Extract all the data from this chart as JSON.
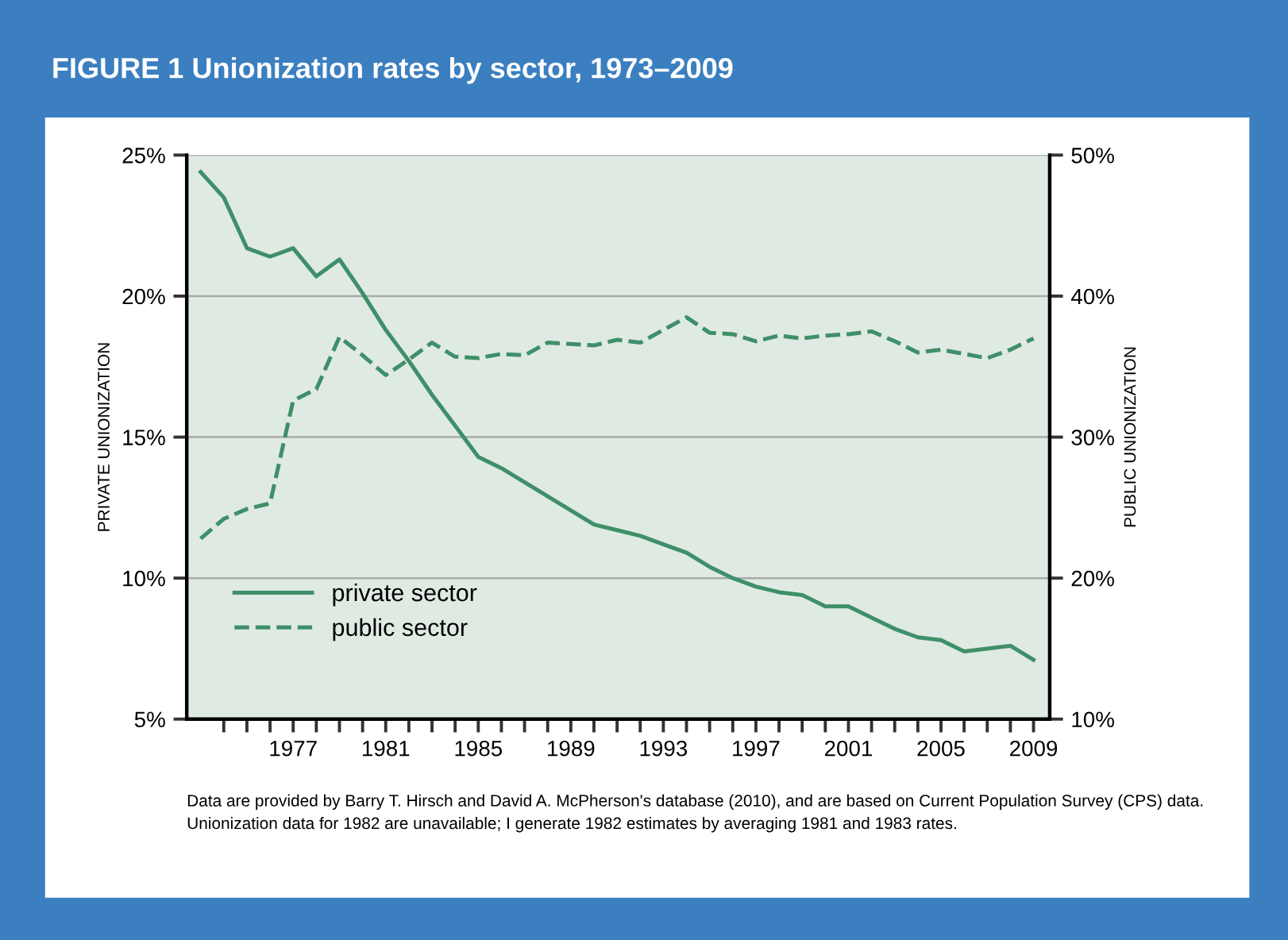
{
  "chart_data": {
    "type": "line",
    "title": "FIGURE 1 Unionization rates by sector, 1973–2009",
    "ylabel": "PRIVATE UNIONIZATION",
    "y2label": "PUBLIC UNIONIZATION",
    "x": [
      1973,
      1974,
      1975,
      1976,
      1977,
      1978,
      1979,
      1980,
      1981,
      1982,
      1983,
      1984,
      1985,
      1986,
      1987,
      1988,
      1989,
      1990,
      1991,
      1992,
      1993,
      1994,
      1995,
      1996,
      1997,
      1998,
      1999,
      2000,
      2001,
      2002,
      2003,
      2004,
      2005,
      2006,
      2007,
      2008,
      2009
    ],
    "series": [
      {
        "name": "private sector",
        "color": "#3f8f68",
        "line_style": "solid",
        "values": [
          24.4,
          23.5,
          21.7,
          21.4,
          21.7,
          20.7,
          21.3,
          20.1,
          18.8,
          17.7,
          16.5,
          15.4,
          14.3,
          13.9,
          13.4,
          12.9,
          12.4,
          11.9,
          11.7,
          11.5,
          11.2,
          10.9,
          10.4,
          10.0,
          9.7,
          9.5,
          9.4,
          9.0,
          9.0,
          8.6,
          8.2,
          7.9,
          7.8,
          7.4,
          7.5,
          7.6,
          7.1
        ]
      },
      {
        "name": "public sector",
        "color": "#3f8f68",
        "line_style": "dashed",
        "axis": "y2",
        "values": [
          22.8,
          24.2,
          24.9,
          25.3,
          32.6,
          33.4,
          37.1,
          35.8,
          34.4,
          35.5,
          36.7,
          35.7,
          35.6,
          35.9,
          35.8,
          36.7,
          36.6,
          36.5,
          36.9,
          36.7,
          37.6,
          38.5,
          37.4,
          37.3,
          36.8,
          37.2,
          37.0,
          37.2,
          37.3,
          37.5,
          36.8,
          36.0,
          36.2,
          35.9,
          35.6,
          36.2,
          37.0
        ]
      }
    ],
    "xlim": [
      1972.4,
      2009.7
    ],
    "xticks": [
      {
        "value": 1974,
        "label": null
      },
      {
        "value": 1975,
        "label": null
      },
      {
        "value": 1976,
        "label": null
      },
      1977,
      {
        "value": 1978,
        "label": null
      },
      {
        "value": 1979,
        "label": null
      },
      {
        "value": 1980,
        "label": null
      },
      1981,
      {
        "value": 1982,
        "label": null
      },
      {
        "value": 1983,
        "label": null
      },
      {
        "value": 1984,
        "label": null
      },
      1985,
      {
        "value": 1986,
        "label": null
      },
      {
        "value": 1987,
        "label": null
      },
      {
        "value": 1988,
        "label": null
      },
      1989,
      {
        "value": 1990,
        "label": null
      },
      {
        "value": 1991,
        "label": null
      },
      {
        "value": 1992,
        "label": null
      },
      1993,
      {
        "value": 1994,
        "label": null
      },
      {
        "value": 1995,
        "label": null
      },
      {
        "value": 1996,
        "label": null
      },
      1997,
      {
        "value": 1998,
        "label": null
      },
      {
        "value": 1999,
        "label": null
      },
      {
        "value": 2000,
        "label": null
      },
      2001,
      {
        "value": 2002,
        "label": null
      },
      {
        "value": 2003,
        "label": null
      },
      {
        "value": 2004,
        "label": null
      },
      2005,
      {
        "value": 2006,
        "label": null
      },
      {
        "value": 2007,
        "label": null
      },
      {
        "value": 2008,
        "label": null
      },
      2009
    ],
    "ylim": [
      5,
      25
    ],
    "yticks": [
      {
        "value": 5,
        "label": "5%"
      },
      {
        "value": 10,
        "label": "10%"
      },
      {
        "value": 15,
        "label": "15%"
      },
      {
        "value": 20,
        "label": "20%"
      },
      {
        "value": 25,
        "label": "25%"
      }
    ],
    "y2lim": [
      10,
      50
    ],
    "y2ticks": [
      {
        "value": 10,
        "label": "10%"
      },
      {
        "value": 20,
        "label": "20%"
      },
      {
        "value": 30,
        "label": "30%"
      },
      {
        "value": 40,
        "label": "40%"
      },
      {
        "value": 50,
        "label": "50%"
      }
    ],
    "grid": "y",
    "legend": "bottom left",
    "annotations": [
      "Data are provided by Barry T. Hirsch and David A. McPherson's database (2010), and are based on Current Population Survey (CPS) data. Unionization data for 1982 are unavailable; I generate 1982 estimates by averaging 1981 and 1983 rates."
    ]
  }
}
